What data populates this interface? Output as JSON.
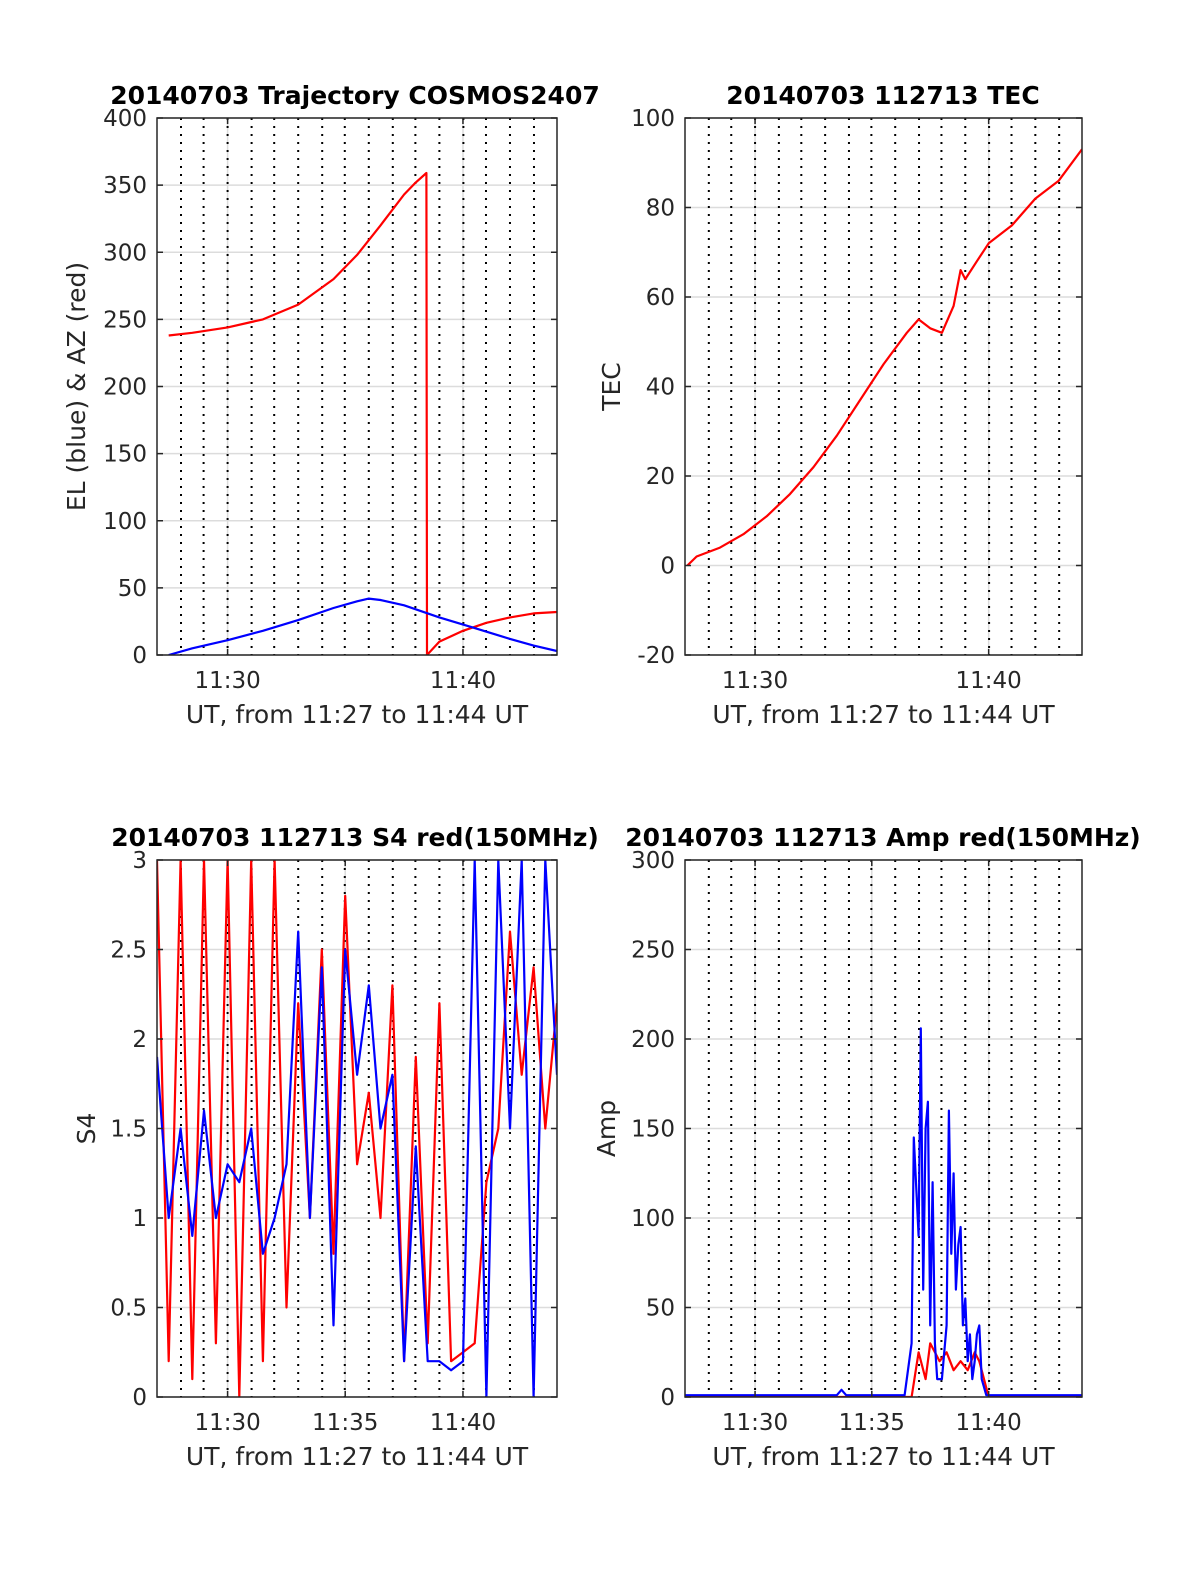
{
  "colors": {
    "red": "#ff0000",
    "blue": "#0000ff",
    "frame": "#262626",
    "grid": "#dcdcdc",
    "vline": "#000000"
  },
  "chart_data": [
    {
      "type": "line",
      "title": "20140703 Trajectory COSMOS2407",
      "xlabel": "UT, from 11:27 to 11:44 UT",
      "ylabel": "EL (blue) & AZ (red)",
      "xlim": [
        11.45,
        11.7333
      ],
      "ylim": [
        0,
        400
      ],
      "xticks": [
        11.5,
        11.6667
      ],
      "xticklabels": [
        "11:30",
        "11:40"
      ],
      "yticks": [
        0,
        50,
        100,
        150,
        200,
        250,
        300,
        350,
        400
      ],
      "yticklabels": [
        "0",
        "50",
        "100",
        "150",
        "200",
        "250",
        "300",
        "350",
        "400"
      ],
      "vlines": [
        11.467,
        11.483,
        11.5,
        11.517,
        11.533,
        11.55,
        11.567,
        11.583,
        11.6,
        11.617,
        11.633,
        11.65,
        11.667,
        11.683,
        11.7,
        11.717
      ],
      "grid": true,
      "series": [
        {
          "color": "red",
          "x": [
            11.4583,
            11.475,
            11.5,
            11.525,
            11.55,
            11.575,
            11.5917,
            11.6083,
            11.625,
            11.6333,
            11.6408,
            11.6412,
            11.65,
            11.6667,
            11.6833,
            11.7,
            11.7167,
            11.7333
          ],
          "y": [
            238,
            240,
            244,
            250,
            261,
            280,
            298,
            320,
            343,
            352,
            359,
            0,
            10,
            18,
            24,
            28,
            31,
            32
          ]
        },
        {
          "color": "blue",
          "x": [
            11.4583,
            11.475,
            11.5,
            11.525,
            11.55,
            11.575,
            11.5917,
            11.6,
            11.6083,
            11.625,
            11.65,
            11.675,
            11.7,
            11.7167,
            11.7333
          ],
          "y": [
            0,
            5,
            11,
            18,
            26,
            35,
            40,
            42,
            41,
            37,
            28,
            20,
            12,
            7,
            3
          ]
        }
      ]
    },
    {
      "type": "line",
      "title": "20140703 112713 TEC",
      "xlabel": "UT, from 11:27 to 11:44 UT",
      "ylabel": "TEC",
      "xlim": [
        11.45,
        11.7333
      ],
      "ylim": [
        -20,
        100
      ],
      "xticks": [
        11.5,
        11.6667
      ],
      "xticklabels": [
        "11:30",
        "11:40"
      ],
      "yticks": [
        -20,
        0,
        20,
        40,
        60,
        80,
        100
      ],
      "yticklabels": [
        "-20",
        "0",
        "20",
        "40",
        "60",
        "80",
        "100"
      ],
      "vlines": [
        11.467,
        11.483,
        11.5,
        11.517,
        11.533,
        11.55,
        11.567,
        11.583,
        11.6,
        11.617,
        11.633,
        11.65,
        11.667,
        11.683,
        11.7,
        11.717
      ],
      "grid": true,
      "series": [
        {
          "color": "red",
          "x": [
            11.4517,
            11.4583,
            11.475,
            11.4917,
            11.5083,
            11.525,
            11.5417,
            11.5583,
            11.575,
            11.5917,
            11.6083,
            11.6167,
            11.625,
            11.6333,
            11.6417,
            11.6467,
            11.65,
            11.6583,
            11.6667,
            11.6833,
            11.7,
            11.7167,
            11.7333
          ],
          "y": [
            0,
            2,
            4,
            7,
            11,
            16,
            22,
            29,
            37,
            45,
            52,
            55,
            53,
            52,
            58,
            66,
            64,
            68,
            72,
            76,
            82,
            86,
            93
          ]
        }
      ]
    },
    {
      "type": "line",
      "title": "20140703 112713 S4 red(150MHz)",
      "xlabel": "UT, from 11:27 to 11:44 UT",
      "ylabel": "S4",
      "xlim": [
        11.45,
        11.7333
      ],
      "ylim": [
        0,
        3
      ],
      "xticks": [
        11.5,
        11.5833,
        11.6667
      ],
      "xticklabels": [
        "11:30",
        "11:35",
        "11:40"
      ],
      "yticks": [
        0,
        0.5,
        1,
        1.5,
        2,
        2.5,
        3
      ],
      "yticklabels": [
        "0",
        "0.5",
        "1",
        "1.5",
        "2",
        "2.5",
        "3"
      ],
      "vlines": [
        11.467,
        11.483,
        11.5,
        11.517,
        11.533,
        11.55,
        11.567,
        11.583,
        11.6,
        11.617,
        11.633,
        11.65,
        11.667,
        11.683,
        11.7,
        11.717
      ],
      "grid": true,
      "series": [
        {
          "color": "red",
          "x": [
            11.45,
            11.4583,
            11.4667,
            11.475,
            11.4833,
            11.4917,
            11.5,
            11.5083,
            11.5167,
            11.525,
            11.5333,
            11.5417,
            11.55,
            11.5583,
            11.5667,
            11.575,
            11.5833,
            11.5917,
            11.6,
            11.6083,
            11.6167,
            11.625,
            11.6333,
            11.6417,
            11.65,
            11.6583,
            11.6667,
            11.675,
            11.6833,
            11.6917,
            11.7,
            11.7083,
            11.7167,
            11.725,
            11.7333
          ],
          "y": [
            3,
            0.2,
            3,
            0.1,
            3,
            0.3,
            3,
            0,
            3,
            0.2,
            3,
            0.5,
            2.2,
            1.0,
            2.5,
            0.8,
            2.8,
            1.3,
            1.7,
            1.0,
            2.3,
            0.2,
            1.9,
            0.3,
            2.2,
            0.2,
            0.25,
            0.3,
            1.2,
            1.5,
            2.6,
            1.8,
            2.4,
            1.5,
            2.2
          ]
        },
        {
          "color": "blue",
          "x": [
            11.45,
            11.4583,
            11.4667,
            11.475,
            11.4833,
            11.4917,
            11.5,
            11.5083,
            11.5167,
            11.525,
            11.5333,
            11.5417,
            11.55,
            11.5583,
            11.5667,
            11.575,
            11.5833,
            11.5917,
            11.6,
            11.6083,
            11.6167,
            11.625,
            11.6333,
            11.6417,
            11.65,
            11.6583,
            11.6667,
            11.675,
            11.6833,
            11.6917,
            11.7,
            11.7083,
            11.7167,
            11.725,
            11.7333
          ],
          "y": [
            1.9,
            1.0,
            1.5,
            0.9,
            1.6,
            1.0,
            1.3,
            1.2,
            1.5,
            0.8,
            1.0,
            1.3,
            2.6,
            1.0,
            2.4,
            0.4,
            2.5,
            1.8,
            2.3,
            1.5,
            1.8,
            0.2,
            1.4,
            0.2,
            0.2,
            0.15,
            0.2,
            3.0,
            0.0,
            3.0,
            1.5,
            3.0,
            0.0,
            3.0,
            1.8
          ]
        }
      ]
    },
    {
      "type": "line",
      "title": "20140703 112713 Amp red(150MHz)",
      "xlabel": "UT, from 11:27 to 11:44 UT",
      "ylabel": "Amp",
      "xlim": [
        11.45,
        11.7333
      ],
      "ylim": [
        0,
        300
      ],
      "xticks": [
        11.5,
        11.5833,
        11.6667
      ],
      "xticklabels": [
        "11:30",
        "11:35",
        "11:40"
      ],
      "yticks": [
        0,
        50,
        100,
        150,
        200,
        250,
        300
      ],
      "yticklabels": [
        "0",
        "50",
        "100",
        "150",
        "200",
        "250",
        "300"
      ],
      "vlines": [
        11.467,
        11.483,
        11.5,
        11.517,
        11.533,
        11.55,
        11.567,
        11.583,
        11.6,
        11.617,
        11.633,
        11.65,
        11.667,
        11.683,
        11.7,
        11.717
      ],
      "grid": true,
      "series": [
        {
          "color": "red",
          "x": [
            11.45,
            11.6,
            11.6117,
            11.6167,
            11.6217,
            11.625,
            11.6317,
            11.6367,
            11.6417,
            11.6467,
            11.6517,
            11.6567,
            11.66,
            11.6667,
            11.7333
          ],
          "y": [
            0,
            0,
            0,
            25,
            10,
            30,
            20,
            25,
            15,
            20,
            15,
            25,
            20,
            0,
            0
          ]
        },
        {
          "color": "blue",
          "x": [
            11.45,
            11.5,
            11.5583,
            11.5617,
            11.565,
            11.6067,
            11.6117,
            11.6133,
            11.6167,
            11.6183,
            11.62,
            11.6217,
            11.6233,
            11.625,
            11.6267,
            11.6283,
            11.63,
            11.6333,
            11.6367,
            11.6383,
            11.64,
            11.6417,
            11.6433,
            11.645,
            11.6467,
            11.6483,
            11.65,
            11.6517,
            11.6533,
            11.655,
            11.6567,
            11.6583,
            11.66,
            11.6617,
            11.665,
            11.7333
          ],
          "y": [
            1,
            1,
            1,
            4,
            1,
            1,
            30,
            145,
            90,
            206,
            60,
            150,
            165,
            40,
            120,
            30,
            10,
            10,
            40,
            160,
            80,
            125,
            60,
            85,
            95,
            40,
            55,
            20,
            35,
            10,
            20,
            35,
            40,
            10,
            1,
            1
          ]
        }
      ]
    }
  ]
}
